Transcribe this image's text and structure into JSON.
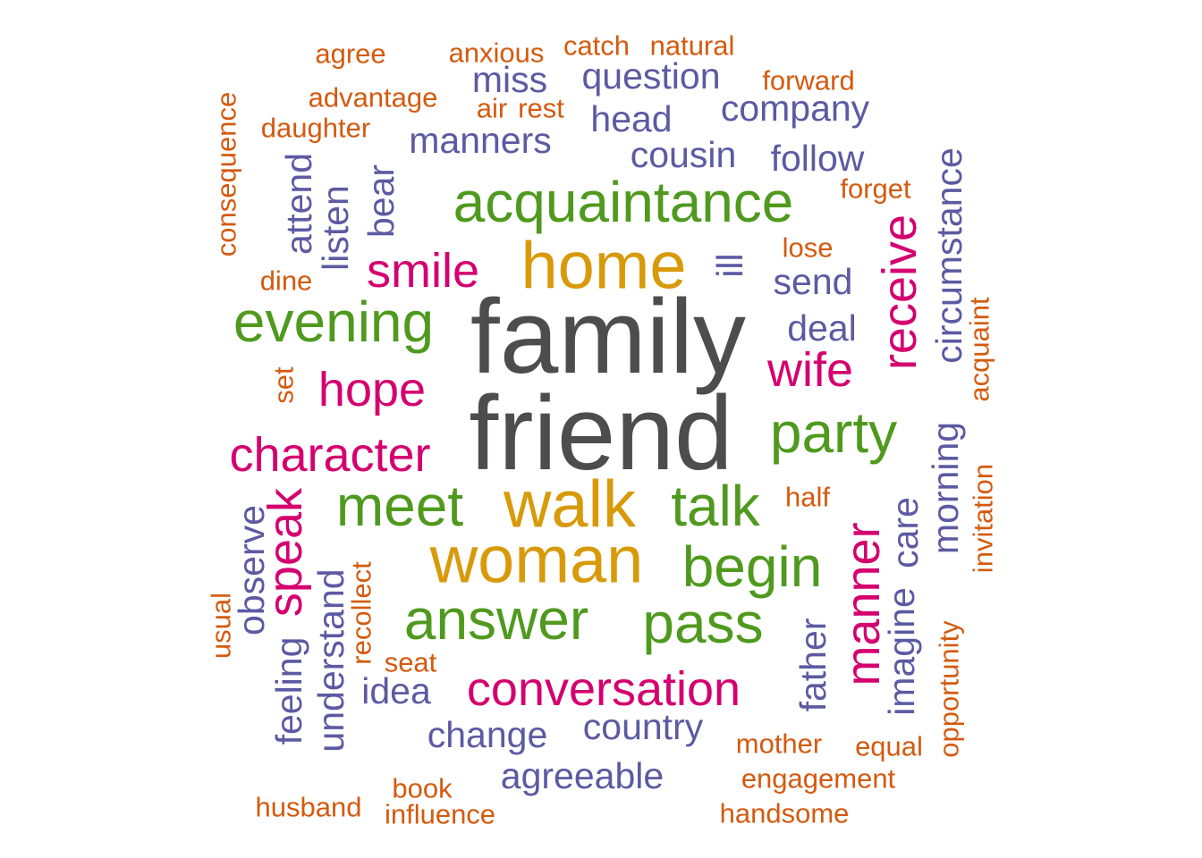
{
  "palette": {
    "tier1": "#4d4d4d",
    "tier2": "#d89a0a",
    "tier3": "#4f9a1e",
    "tier4": "#d4006f",
    "tier5": "#5c5aa2",
    "tier6": "#d45a0f"
  },
  "words": [
    {
      "text": "family",
      "weight": 1,
      "tier": "tier1"
    },
    {
      "text": "friend",
      "weight": 1,
      "tier": "tier1"
    },
    {
      "text": "home",
      "weight": 2,
      "tier": "tier2"
    },
    {
      "text": "walk",
      "weight": 2,
      "tier": "tier2"
    },
    {
      "text": "woman",
      "weight": 2,
      "tier": "tier2"
    },
    {
      "text": "acquaintance",
      "weight": 3,
      "tier": "tier3"
    },
    {
      "text": "evening",
      "weight": 3,
      "tier": "tier3"
    },
    {
      "text": "party",
      "weight": 3,
      "tier": "tier3"
    },
    {
      "text": "meet",
      "weight": 3,
      "tier": "tier3"
    },
    {
      "text": "talk",
      "weight": 3,
      "tier": "tier3"
    },
    {
      "text": "begin",
      "weight": 3,
      "tier": "tier3"
    },
    {
      "text": "answer",
      "weight": 3,
      "tier": "tier3"
    },
    {
      "text": "pass",
      "weight": 3,
      "tier": "tier3"
    },
    {
      "text": "smile",
      "weight": 4,
      "tier": "tier4"
    },
    {
      "text": "hope",
      "weight": 4,
      "tier": "tier4"
    },
    {
      "text": "character",
      "weight": 4,
      "tier": "tier4"
    },
    {
      "text": "wife",
      "weight": 4,
      "tier": "tier4"
    },
    {
      "text": "receive",
      "weight": 4,
      "tier": "tier4"
    },
    {
      "text": "speak",
      "weight": 4,
      "tier": "tier4"
    },
    {
      "text": "manner",
      "weight": 4,
      "tier": "tier4"
    },
    {
      "text": "conversation",
      "weight": 4,
      "tier": "tier4"
    },
    {
      "text": "miss",
      "weight": 5,
      "tier": "tier5"
    },
    {
      "text": "question",
      "weight": 5,
      "tier": "tier5"
    },
    {
      "text": "head",
      "weight": 5,
      "tier": "tier5"
    },
    {
      "text": "company",
      "weight": 5,
      "tier": "tier5"
    },
    {
      "text": "manners",
      "weight": 5,
      "tier": "tier5"
    },
    {
      "text": "cousin",
      "weight": 5,
      "tier": "tier5"
    },
    {
      "text": "follow",
      "weight": 5,
      "tier": "tier5"
    },
    {
      "text": "circumstance",
      "weight": 5,
      "tier": "tier5"
    },
    {
      "text": "ill",
      "weight": 5,
      "tier": "tier5"
    },
    {
      "text": "send",
      "weight": 5,
      "tier": "tier5"
    },
    {
      "text": "deal",
      "weight": 5,
      "tier": "tier5"
    },
    {
      "text": "attend",
      "weight": 5,
      "tier": "tier5"
    },
    {
      "text": "listen",
      "weight": 5,
      "tier": "tier5"
    },
    {
      "text": "bear",
      "weight": 5,
      "tier": "tier5"
    },
    {
      "text": "morning",
      "weight": 5,
      "tier": "tier5"
    },
    {
      "text": "care",
      "weight": 5,
      "tier": "tier5"
    },
    {
      "text": "observe",
      "weight": 5,
      "tier": "tier5"
    },
    {
      "text": "understand",
      "weight": 5,
      "tier": "tier5"
    },
    {
      "text": "father",
      "weight": 5,
      "tier": "tier5"
    },
    {
      "text": "imagine",
      "weight": 5,
      "tier": "tier5"
    },
    {
      "text": "feeling",
      "weight": 5,
      "tier": "tier5"
    },
    {
      "text": "idea",
      "weight": 5,
      "tier": "tier5"
    },
    {
      "text": "change",
      "weight": 5,
      "tier": "tier5"
    },
    {
      "text": "country",
      "weight": 5,
      "tier": "tier5"
    },
    {
      "text": "agreeable",
      "weight": 5,
      "tier": "tier5"
    },
    {
      "text": "agree",
      "weight": 6,
      "tier": "tier6"
    },
    {
      "text": "anxious",
      "weight": 6,
      "tier": "tier6"
    },
    {
      "text": "catch",
      "weight": 6,
      "tier": "tier6"
    },
    {
      "text": "natural",
      "weight": 6,
      "tier": "tier6"
    },
    {
      "text": "forward",
      "weight": 6,
      "tier": "tier6"
    },
    {
      "text": "advantage",
      "weight": 6,
      "tier": "tier6"
    },
    {
      "text": "air",
      "weight": 6,
      "tier": "tier6"
    },
    {
      "text": "rest",
      "weight": 6,
      "tier": "tier6"
    },
    {
      "text": "daughter",
      "weight": 6,
      "tier": "tier6"
    },
    {
      "text": "consequence",
      "weight": 6,
      "tier": "tier6"
    },
    {
      "text": "forget",
      "weight": 6,
      "tier": "tier6"
    },
    {
      "text": "lose",
      "weight": 6,
      "tier": "tier6"
    },
    {
      "text": "dine",
      "weight": 6,
      "tier": "tier6"
    },
    {
      "text": "set",
      "weight": 6,
      "tier": "tier6"
    },
    {
      "text": "acquaint",
      "weight": 6,
      "tier": "tier6"
    },
    {
      "text": "half",
      "weight": 6,
      "tier": "tier6"
    },
    {
      "text": "invitation",
      "weight": 6,
      "tier": "tier6"
    },
    {
      "text": "usual",
      "weight": 6,
      "tier": "tier6"
    },
    {
      "text": "recollect",
      "weight": 6,
      "tier": "tier6"
    },
    {
      "text": "seat",
      "weight": 6,
      "tier": "tier6"
    },
    {
      "text": "opportunity",
      "weight": 6,
      "tier": "tier6"
    },
    {
      "text": "mother",
      "weight": 6,
      "tier": "tier6"
    },
    {
      "text": "equal",
      "weight": 6,
      "tier": "tier6"
    },
    {
      "text": "engagement",
      "weight": 6,
      "tier": "tier6"
    },
    {
      "text": "book",
      "weight": 6,
      "tier": "tier6"
    },
    {
      "text": "husband",
      "weight": 6,
      "tier": "tier6"
    },
    {
      "text": "influence",
      "weight": 6,
      "tier": "tier6"
    },
    {
      "text": "handsome",
      "weight": 6,
      "tier": "tier6"
    }
  ]
}
